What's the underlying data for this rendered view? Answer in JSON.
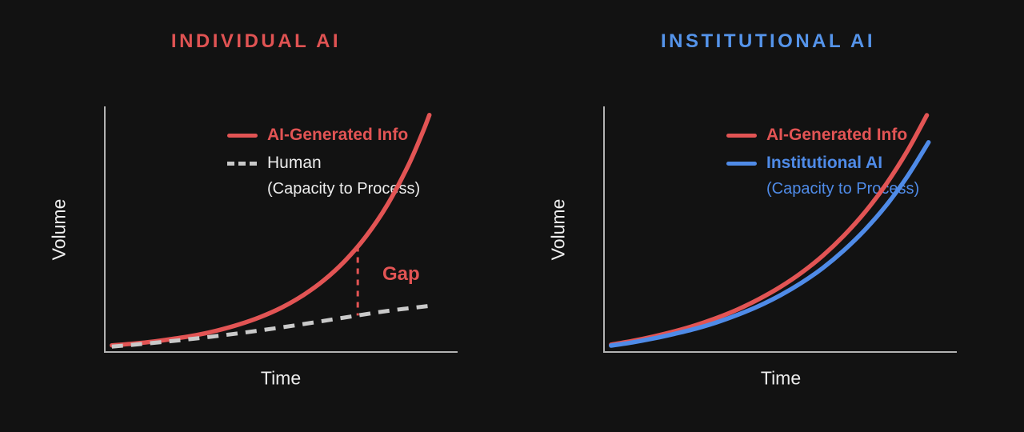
{
  "colors": {
    "background": "#121212",
    "axis": "#b3b3b3",
    "text": "#ececec"
  },
  "chart_data": [
    {
      "type": "line",
      "title": "INDIVIDUAL AI",
      "title_color": "#e05353",
      "xlabel": "Time",
      "ylabel": "Volume",
      "x_range": [
        0,
        10
      ],
      "y_range": [
        0,
        10
      ],
      "grid": false,
      "legend_position": "top-right-inside",
      "series": [
        {
          "name": "AI-Generated Info",
          "style": "solid",
          "color": "#e25454",
          "label_color": "#e25454",
          "label_bold": true,
          "x": [
            0.2,
            0.8,
            1.4,
            2.0,
            2.6,
            3.2,
            3.8,
            4.4,
            5.0,
            5.6,
            6.2,
            6.8,
            7.4,
            8.0,
            8.6,
            9.0,
            9.2
          ],
          "y": [
            0.27,
            0.34,
            0.43,
            0.55,
            0.69,
            0.88,
            1.12,
            1.42,
            1.8,
            2.29,
            2.91,
            3.7,
            4.7,
            5.97,
            7.59,
            8.91,
            9.65
          ]
        },
        {
          "name": "Human",
          "subtitle": "(Capacity to Process)",
          "style": "dashed",
          "color": "#c9c9c9",
          "label_color": "#ececec",
          "subtitle_color": "#ececec",
          "label_bold": false,
          "x": [
            0.2,
            1.0,
            2.0,
            3.0,
            4.0,
            5.0,
            6.0,
            7.0,
            8.0,
            9.15
          ],
          "y": [
            0.22,
            0.32,
            0.46,
            0.62,
            0.8,
            1.0,
            1.22,
            1.45,
            1.67,
            1.87
          ]
        }
      ],
      "annotations": [
        {
          "type": "gap-line",
          "label": "Gap",
          "color": "#e25454",
          "x": 7.17,
          "between_series": [
            0,
            1
          ]
        }
      ]
    },
    {
      "type": "line",
      "title": "INSTITUTIONAL AI",
      "title_color": "#5594ea",
      "xlabel": "Time",
      "ylabel": "Volume",
      "x_range": [
        0,
        10
      ],
      "y_range": [
        0,
        10
      ],
      "grid": false,
      "legend_position": "top-right-inside",
      "series": [
        {
          "name": "AI-Generated Info",
          "style": "solid",
          "color": "#e25454",
          "label_color": "#e25454",
          "label_bold": true,
          "x": [
            0.2,
            0.8,
            1.4,
            2.0,
            2.6,
            3.2,
            3.8,
            4.4,
            5.0,
            5.6,
            6.2,
            6.8,
            7.4,
            8.0,
            8.6,
            9.15
          ],
          "y": [
            0.3,
            0.45,
            0.63,
            0.84,
            1.09,
            1.39,
            1.74,
            2.16,
            2.65,
            3.23,
            3.92,
            4.74,
            5.7,
            6.84,
            8.19,
            9.64
          ]
        },
        {
          "name": "Institutional AI",
          "subtitle": "(Capacity to Process)",
          "style": "solid",
          "color": "#4f8be8",
          "label_color": "#4f8be8",
          "subtitle_color": "#4f8be8",
          "label_bold": true,
          "x": [
            0.2,
            0.8,
            1.4,
            2.0,
            2.6,
            3.2,
            3.8,
            4.4,
            5.0,
            5.6,
            6.2,
            6.8,
            7.4,
            8.0,
            8.6,
            9.2
          ],
          "y": [
            0.26,
            0.39,
            0.55,
            0.74,
            0.95,
            1.21,
            1.52,
            1.88,
            2.31,
            2.82,
            3.42,
            4.14,
            4.98,
            5.97,
            7.15,
            8.54
          ]
        }
      ],
      "annotations": []
    }
  ]
}
